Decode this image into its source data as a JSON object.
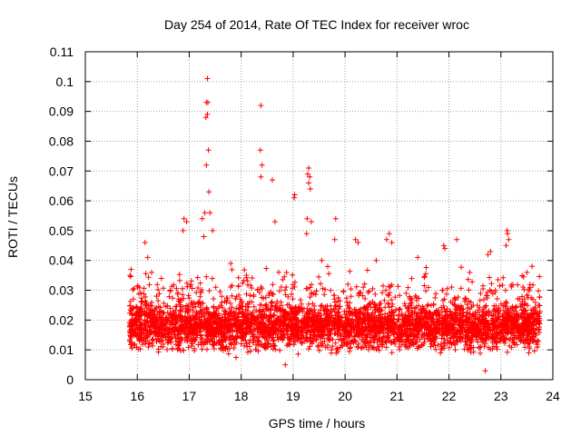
{
  "colors": {
    "points": "#ff0000",
    "grid": "#a0a0a0",
    "axis": "#000000"
  },
  "chart_data": {
    "type": "scatter",
    "title": "Day 254 of 2014, Rate Of TEC Index for receiver wroc",
    "xlabel": "GPS time / hours",
    "ylabel": "ROTI / TECUs",
    "xlim": [
      15,
      24
    ],
    "ylim": [
      0,
      0.11
    ],
    "xticks": [
      15,
      16,
      17,
      18,
      19,
      20,
      21,
      22,
      23,
      24
    ],
    "xtick_labels": [
      "15",
      "16",
      "17",
      "18",
      "19",
      "20",
      "21",
      "22",
      "23",
      "24"
    ],
    "yticks": [
      0,
      0.01,
      0.02,
      0.03,
      0.04,
      0.05,
      0.06,
      0.07,
      0.08,
      0.09,
      0.1,
      0.11
    ],
    "ytick_labels": [
      "0",
      "0.01",
      "0.02",
      "0.03",
      "0.04",
      "0.05",
      "0.06",
      "0.07",
      "0.08",
      "0.09",
      "0.1",
      "0.11"
    ],
    "grid": true,
    "marker": "+",
    "series": [
      {
        "name": "ROTI",
        "x_range": [
          15.85,
          23.75
        ],
        "typical_range": [
          0.005,
          0.03
        ],
        "point_count": 4200,
        "notable_points": [
          {
            "x": 17.35,
            "y": 0.101
          },
          {
            "x": 17.33,
            "y": 0.093
          },
          {
            "x": 17.36,
            "y": 0.093
          },
          {
            "x": 17.32,
            "y": 0.088
          },
          {
            "x": 17.35,
            "y": 0.089
          },
          {
            "x": 17.37,
            "y": 0.077
          },
          {
            "x": 17.33,
            "y": 0.072
          },
          {
            "x": 17.38,
            "y": 0.063
          },
          {
            "x": 17.3,
            "y": 0.056
          },
          {
            "x": 17.4,
            "y": 0.056
          },
          {
            "x": 17.28,
            "y": 0.048
          },
          {
            "x": 18.38,
            "y": 0.092
          },
          {
            "x": 18.37,
            "y": 0.077
          },
          {
            "x": 18.4,
            "y": 0.072
          },
          {
            "x": 18.38,
            "y": 0.068
          },
          {
            "x": 18.6,
            "y": 0.067
          },
          {
            "x": 18.65,
            "y": 0.053
          },
          {
            "x": 19.03,
            "y": 0.062
          },
          {
            "x": 19.02,
            "y": 0.061
          },
          {
            "x": 19.3,
            "y": 0.071
          },
          {
            "x": 19.28,
            "y": 0.069
          },
          {
            "x": 19.32,
            "y": 0.068
          },
          {
            "x": 19.3,
            "y": 0.066
          },
          {
            "x": 19.33,
            "y": 0.064
          },
          {
            "x": 19.27,
            "y": 0.054
          },
          {
            "x": 19.35,
            "y": 0.053
          },
          {
            "x": 19.26,
            "y": 0.049
          },
          {
            "x": 19.82,
            "y": 0.054
          },
          {
            "x": 19.8,
            "y": 0.047
          },
          {
            "x": 16.9,
            "y": 0.054
          },
          {
            "x": 16.95,
            "y": 0.053
          },
          {
            "x": 16.88,
            "y": 0.05
          },
          {
            "x": 17.25,
            "y": 0.054
          },
          {
            "x": 17.45,
            "y": 0.05
          },
          {
            "x": 16.15,
            "y": 0.046
          },
          {
            "x": 16.2,
            "y": 0.041
          },
          {
            "x": 20.2,
            "y": 0.047
          },
          {
            "x": 20.25,
            "y": 0.046
          },
          {
            "x": 20.85,
            "y": 0.049
          },
          {
            "x": 20.8,
            "y": 0.047
          },
          {
            "x": 20.9,
            "y": 0.046
          },
          {
            "x": 21.9,
            "y": 0.045
          },
          {
            "x": 21.92,
            "y": 0.044
          },
          {
            "x": 22.15,
            "y": 0.047
          },
          {
            "x": 22.8,
            "y": 0.043
          },
          {
            "x": 22.75,
            "y": 0.042
          },
          {
            "x": 23.12,
            "y": 0.05
          },
          {
            "x": 23.13,
            "y": 0.049
          },
          {
            "x": 23.15,
            "y": 0.047
          },
          {
            "x": 23.1,
            "y": 0.045
          },
          {
            "x": 15.88,
            "y": 0.037
          },
          {
            "x": 15.86,
            "y": 0.035
          },
          {
            "x": 17.8,
            "y": 0.039
          },
          {
            "x": 18.1,
            "y": 0.035
          },
          {
            "x": 19.55,
            "y": 0.04
          },
          {
            "x": 20.6,
            "y": 0.04
          },
          {
            "x": 21.4,
            "y": 0.041
          },
          {
            "x": 22.4,
            "y": 0.036
          },
          {
            "x": 23.6,
            "y": 0.038
          },
          {
            "x": 23.5,
            "y": 0.036
          },
          {
            "x": 22.7,
            "y": 0.003
          },
          {
            "x": 18.85,
            "y": 0.005
          }
        ]
      }
    ]
  }
}
